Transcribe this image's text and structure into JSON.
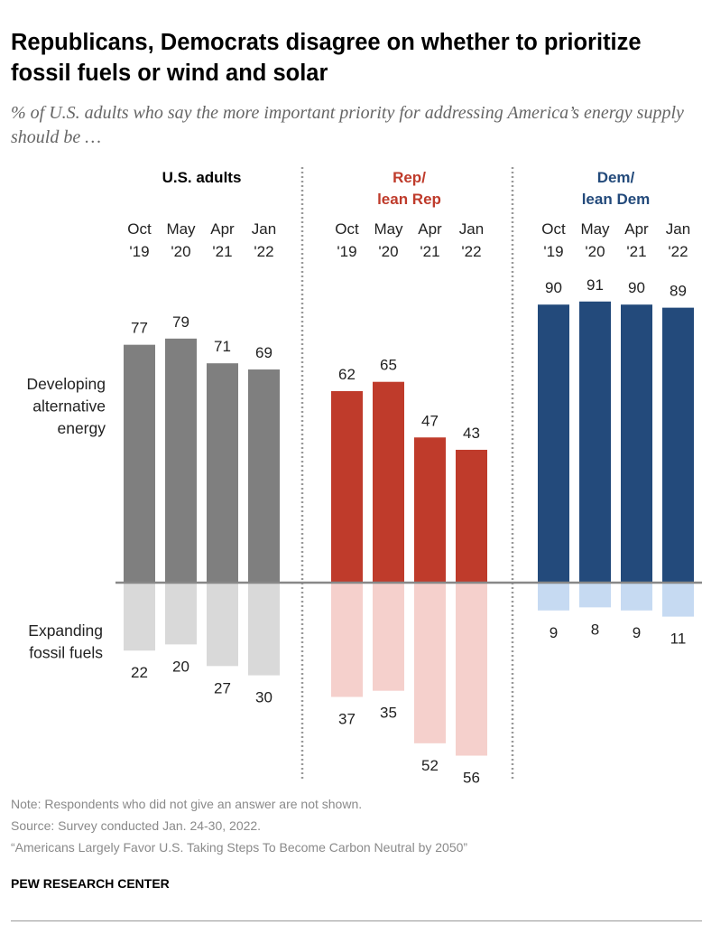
{
  "title": "Republicans, Democrats disagree on whether to prioritize fossil fuels or wind and solar",
  "subtitle": "% of U.S. adults who say the more important priority for addressing America’s energy supply should be …",
  "chart_data": {
    "type": "bar",
    "categories": [
      [
        "Oct",
        "'19"
      ],
      [
        "May",
        "'20"
      ],
      [
        "Apr",
        "'21"
      ],
      [
        "Jan",
        "'22"
      ]
    ],
    "row_labels": {
      "positive": [
        "Developing",
        "alternative",
        "energy"
      ],
      "negative": [
        "Expanding",
        "fossil fuels"
      ]
    },
    "panels": [
      {
        "name": [
          "U.S. adults"
        ],
        "header_color": "#000000",
        "color_pos": "#7f7f7f",
        "color_neg": "#d9d9d9",
        "alternative_energy": [
          77,
          79,
          71,
          69
        ],
        "fossil_fuels": [
          22,
          20,
          27,
          30
        ]
      },
      {
        "name": [
          "Rep/",
          "lean Rep"
        ],
        "header_color": "#bf3b2b",
        "color_pos": "#bf3b2b",
        "color_neg": "#f5d0cc",
        "alternative_energy": [
          62,
          65,
          47,
          43
        ],
        "fossil_fuels": [
          37,
          35,
          52,
          56
        ]
      },
      {
        "name": [
          "Dem/",
          "lean Dem"
        ],
        "header_color": "#234a7b",
        "color_pos": "#234a7b",
        "color_neg": "#c6daf2",
        "alternative_energy": [
          90,
          91,
          90,
          89
        ],
        "fossil_fuels": [
          9,
          8,
          9,
          11
        ]
      }
    ]
  },
  "notes": [
    "Note: Respondents who did not give an answer are not shown.",
    "Source: Survey conducted Jan. 24-30, 2022.",
    "“Americans Largely Favor U.S. Taking Steps To Become Carbon Neutral by 2050”"
  ],
  "source_org": "PEW RESEARCH CENTER"
}
